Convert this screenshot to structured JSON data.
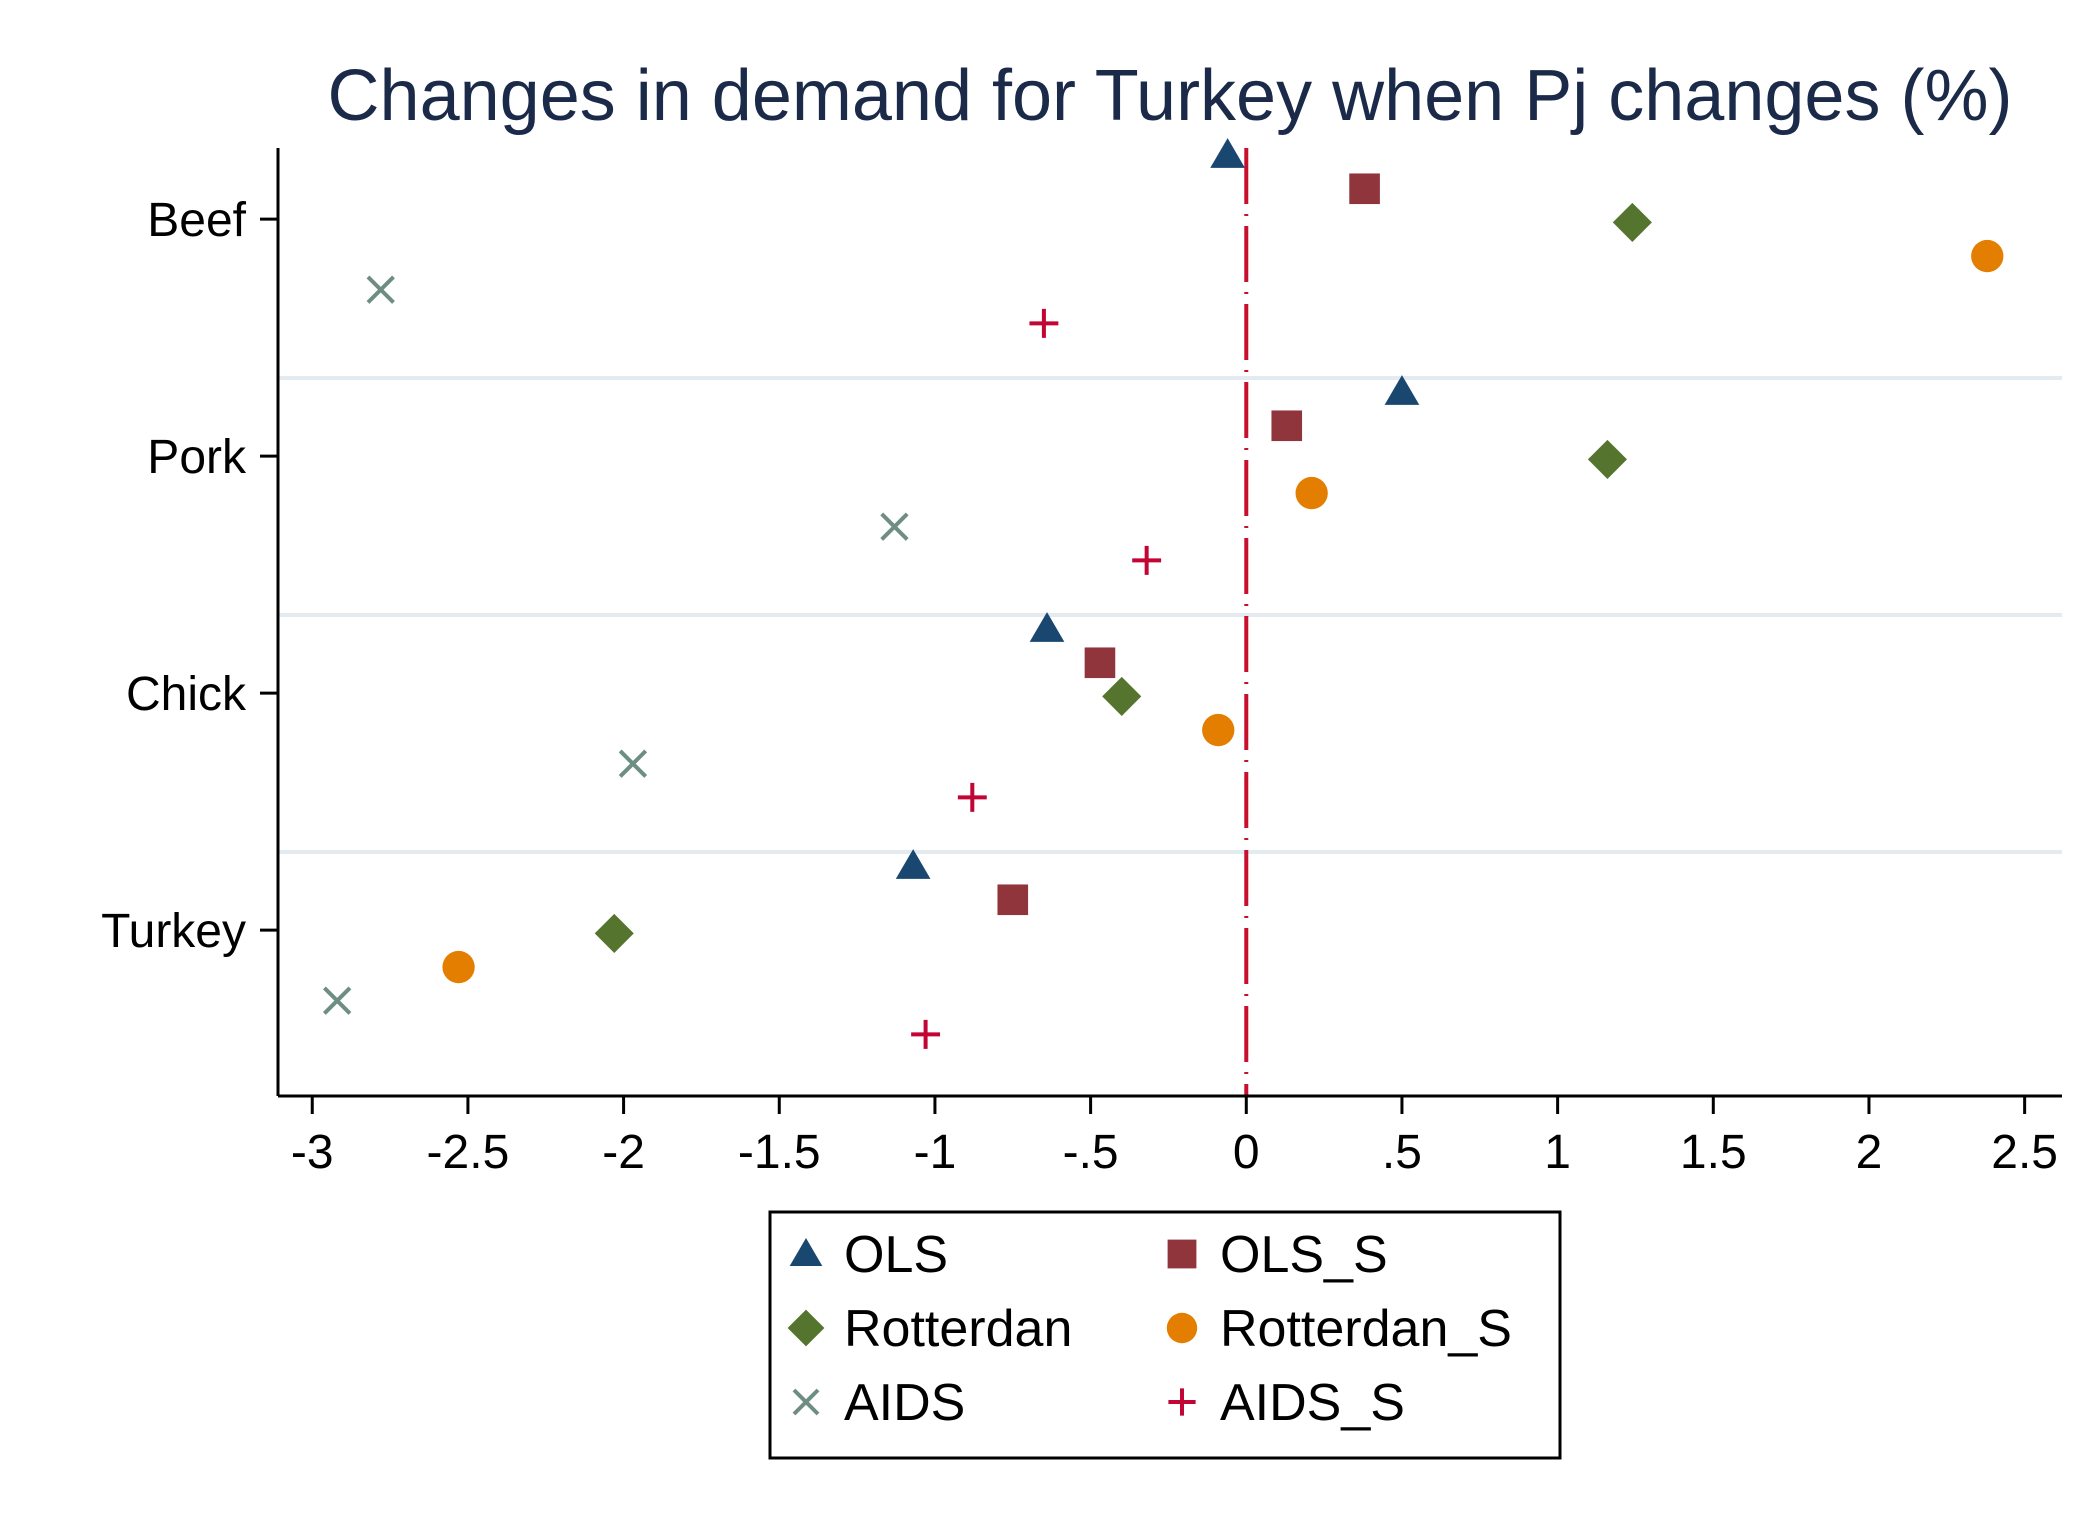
{
  "chart_data": {
    "type": "scatter",
    "title": "Changes in demand for Turkey when Pj changes (%)",
    "xlabel": "",
    "ylabel": "",
    "xlim": [
      -3.11,
      2.62
    ],
    "x_ticks": [
      {
        "value": -3,
        "label": "-3"
      },
      {
        "value": -2.5,
        "label": "-2.5"
      },
      {
        "value": -2,
        "label": "-2"
      },
      {
        "value": -1.5,
        "label": "-1.5"
      },
      {
        "value": -1,
        "label": "-1"
      },
      {
        "value": -0.5,
        "label": "-.5"
      },
      {
        "value": 0,
        "label": "0"
      },
      {
        "value": 0.5,
        "label": ".5"
      },
      {
        "value": 1,
        "label": "1"
      },
      {
        "value": 1.5,
        "label": "1.5"
      },
      {
        "value": 2,
        "label": "2"
      },
      {
        "value": 2.5,
        "label": "2.5"
      }
    ],
    "categories": [
      "Beef",
      "Pork",
      "Chick",
      "Turkey"
    ],
    "reference_line": {
      "x": 0,
      "style": "dash-dot",
      "color": "#c8102e"
    },
    "grid": "horizontal separators between categories",
    "legend_position": "bottom",
    "legend_columns": 2,
    "series": [
      {
        "name": "OLS",
        "marker": "triangle",
        "color": "#1a476f",
        "values": [
          -0.06,
          0.5,
          -0.64,
          -1.07
        ]
      },
      {
        "name": "OLS_S",
        "marker": "square",
        "color": "#90353b",
        "values": [
          0.38,
          0.13,
          -0.47,
          -0.75
        ]
      },
      {
        "name": "Rotterdan",
        "marker": "diamond",
        "color": "#55752f",
        "values": [
          1.24,
          1.16,
          -0.4,
          -2.03
        ]
      },
      {
        "name": "Rotterdan_S",
        "marker": "circle",
        "color": "#e37e00",
        "values": [
          2.38,
          0.21,
          -0.09,
          -2.53
        ]
      },
      {
        "name": "AIDS",
        "marker": "x",
        "color": "#6e8e84",
        "values": [
          -2.78,
          -1.13,
          -1.97,
          -2.92
        ]
      },
      {
        "name": "AIDS_S",
        "marker": "plus",
        "color": "#c10534",
        "values": [
          -0.65,
          -0.32,
          -0.88,
          -1.03
        ]
      }
    ]
  }
}
